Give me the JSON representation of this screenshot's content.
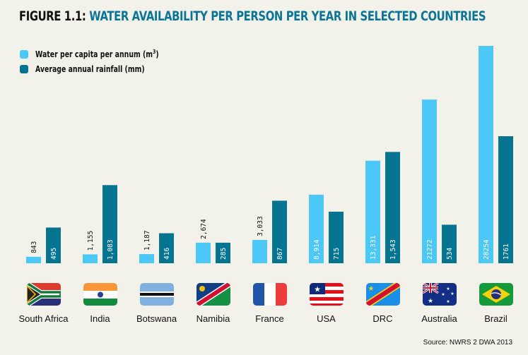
{
  "title": {
    "figure": "FIGURE 1.1:",
    "text": "WATER AVAILABILITY PER PERSON PER YEAR IN SELECTED COUNTRIES"
  },
  "legend": [
    {
      "label": "Water per capita per annum (m",
      "sup": "3",
      "suffix": ")",
      "color": "#4bc8f5"
    },
    {
      "label": "Average annual rainfall (mm)",
      "sup": "",
      "suffix": "",
      "color": "#067391"
    }
  ],
  "source": "Source: NWRS 2 DWA 2013",
  "chart_data": {
    "type": "bar",
    "title": "FIGURE 1.1: WATER AVAILABILITY PER PERSON PER YEAR IN SELECTED COUNTRIES",
    "categories": [
      "South Africa",
      "India",
      "Botswana",
      "Namibia",
      "France",
      "USA",
      "DRC",
      "Australia",
      "Brazil"
    ],
    "series": [
      {
        "name": "Water per capita per annum (m³)",
        "color": "#4bc8f5",
        "values": [
          843,
          1155,
          1187,
          2674,
          3033,
          8914,
          13331,
          21272,
          28254
        ],
        "labels": [
          "843",
          "1,155",
          "1,187",
          "2,674",
          "3,033",
          "8,914",
          "13,331",
          "21272",
          "28254"
        ]
      },
      {
        "name": "Average annual rainfall (mm)",
        "color": "#067391",
        "values": [
          495,
          1083,
          416,
          285,
          867,
          715,
          1543,
          534,
          1761
        ],
        "labels": [
          "495",
          "1,083",
          "416",
          "285",
          "867",
          "715",
          "1,543",
          "534",
          "1761"
        ]
      }
    ],
    "xlabel": "",
    "ylabel": "",
    "grid": false,
    "legend_position": "top-left",
    "flags": [
      "south-africa",
      "india",
      "botswana",
      "namibia",
      "france",
      "usa",
      "drc",
      "australia",
      "brazil"
    ]
  }
}
